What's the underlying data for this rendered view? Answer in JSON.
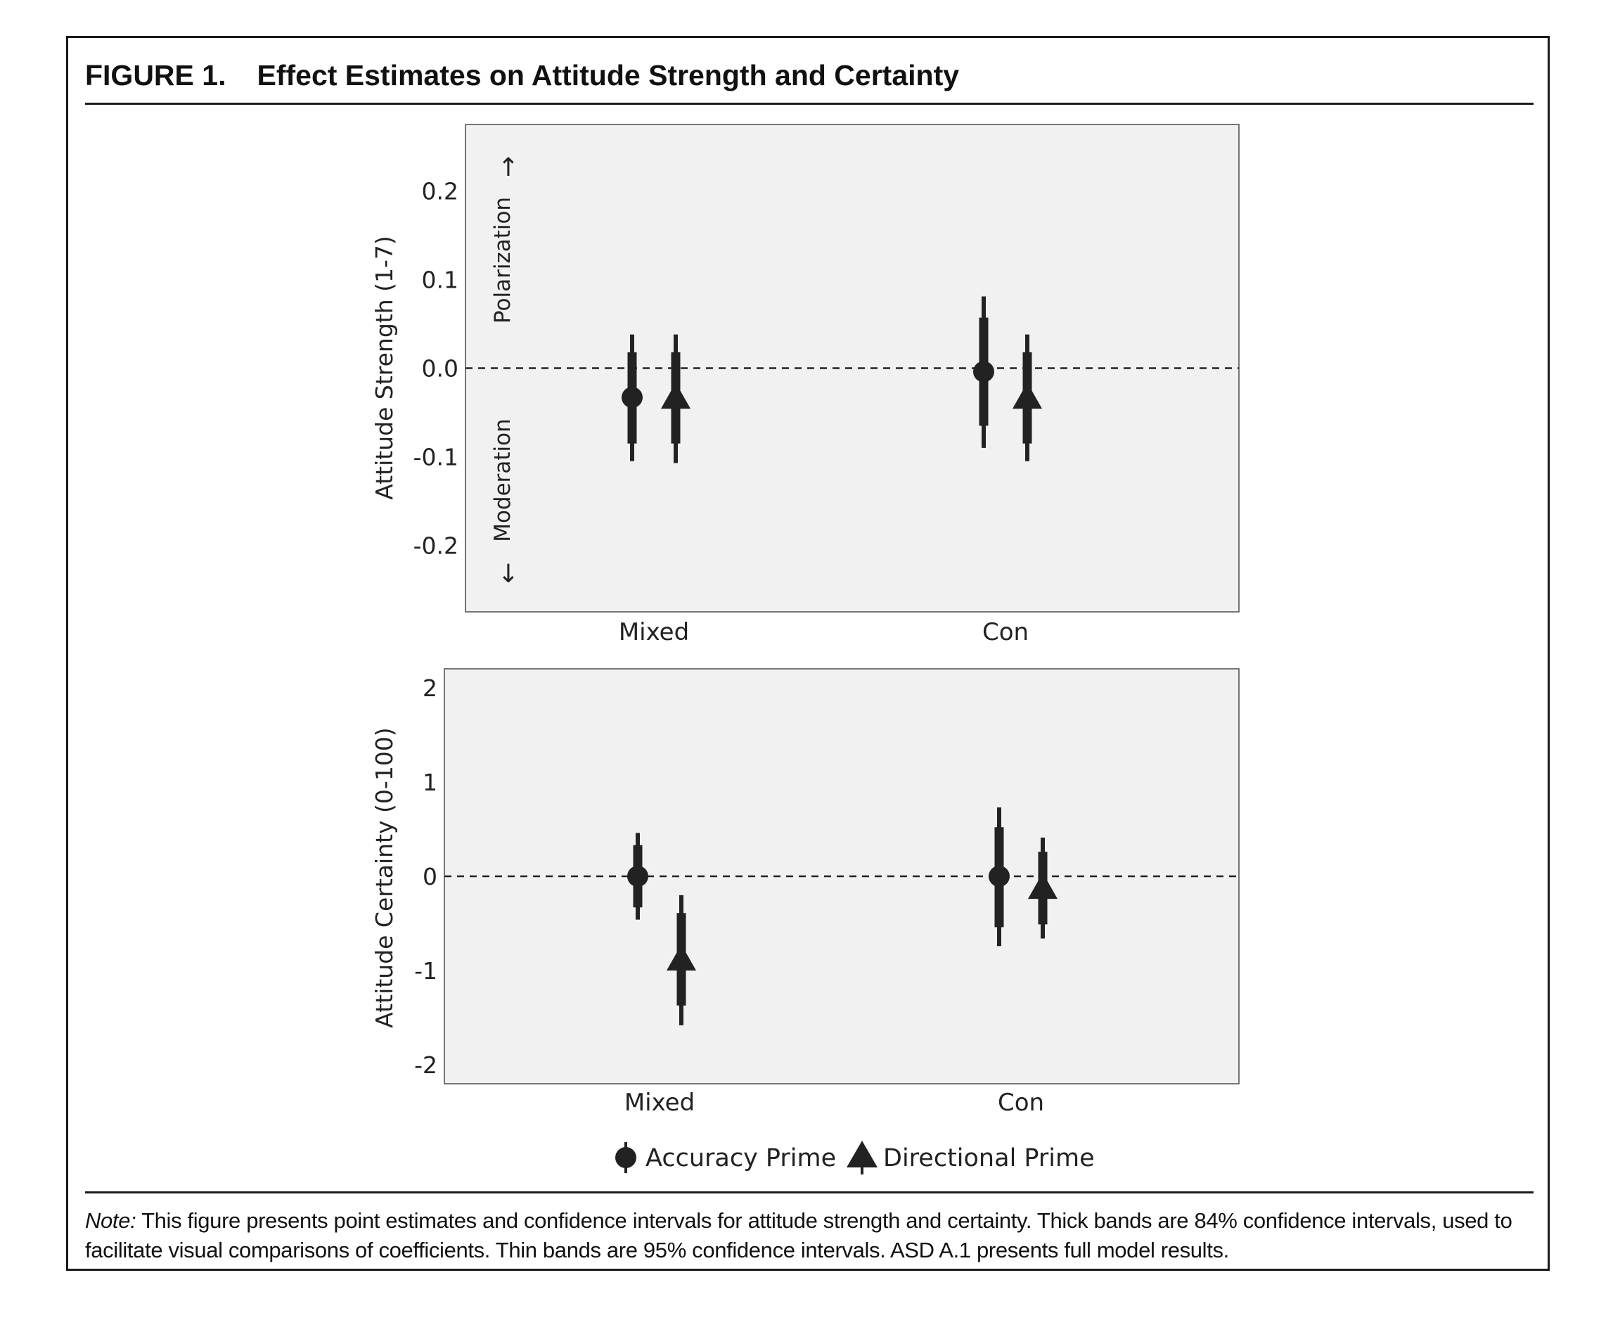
{
  "figure": {
    "label": "FIGURE 1.",
    "title": "Effect Estimates on Attitude Strength and Certainty"
  },
  "note": {
    "prefix": "Note:",
    "text": "This figure presents point estimates and confidence intervals for attitude strength and certainty. Thick bands are 84% confidence intervals, used to facilitate visual comparisons of coefficients. Thin bands are 95% confidence intervals. ASD A.1 presents full model results."
  },
  "chart_data": [
    {
      "type": "scatter",
      "subtype": "coefficient-plot",
      "ylabel": "Attitude Strength (1-7)",
      "categories": [
        "Mixed",
        "Con"
      ],
      "ylim": [
        -0.275,
        0.275
      ],
      "yticks": [
        0.2,
        0.1,
        0.0,
        -0.1,
        -0.2
      ],
      "ytick_labels": [
        "0.2",
        "0.1",
        "0.0",
        "-0.1",
        "-0.2"
      ],
      "reference_line": 0,
      "annotations": {
        "top": "Polarization",
        "bottom": "Moderation"
      },
      "series": [
        {
          "name": "Accuracy Prime",
          "marker": "circle",
          "estimates": [
            -0.033,
            -0.004
          ],
          "ci84": [
            [
              -0.085,
              0.018
            ],
            [
              -0.065,
              0.057
            ]
          ],
          "ci95": [
            [
              -0.105,
              0.038
            ],
            [
              -0.09,
              0.081
            ]
          ]
        },
        {
          "name": "Directional Prime",
          "marker": "triangle",
          "estimates": [
            -0.033,
            -0.033
          ],
          "ci84": [
            [
              -0.085,
              0.018
            ],
            [
              -0.085,
              0.018
            ]
          ],
          "ci95": [
            [
              -0.107,
              0.038
            ],
            [
              -0.105,
              0.038
            ]
          ]
        }
      ]
    },
    {
      "type": "scatter",
      "subtype": "coefficient-plot",
      "ylabel": "Attitude Certainty (0-100)",
      "categories": [
        "Mixed",
        "Con"
      ],
      "ylim": [
        -2.2,
        2.2
      ],
      "yticks": [
        2,
        1,
        0,
        -1,
        -2
      ],
      "ytick_labels": [
        "2",
        "1",
        "0",
        "-1",
        "-2"
      ],
      "reference_line": 0,
      "series": [
        {
          "name": "Accuracy Prime",
          "marker": "circle",
          "estimates": [
            0.0,
            0.0
          ],
          "ci84": [
            [
              -0.33,
              0.33
            ],
            [
              -0.54,
              0.52
            ]
          ],
          "ci95": [
            [
              -0.46,
              0.46
            ],
            [
              -0.74,
              0.73
            ]
          ]
        },
        {
          "name": "Directional Prime",
          "marker": "triangle",
          "estimates": [
            -0.88,
            -0.12
          ],
          "ci84": [
            [
              -1.37,
              -0.39
            ],
            [
              -0.51,
              0.26
            ]
          ],
          "ci95": [
            [
              -1.58,
              -0.2
            ],
            [
              -0.66,
              0.41
            ]
          ]
        }
      ]
    }
  ],
  "legend": {
    "items": [
      "Accuracy Prime",
      "Directional Prime"
    ],
    "position": "bottom"
  },
  "colors": {
    "ink": "#222222",
    "panel": "#f1f1f1",
    "panel_border": "#555555"
  }
}
